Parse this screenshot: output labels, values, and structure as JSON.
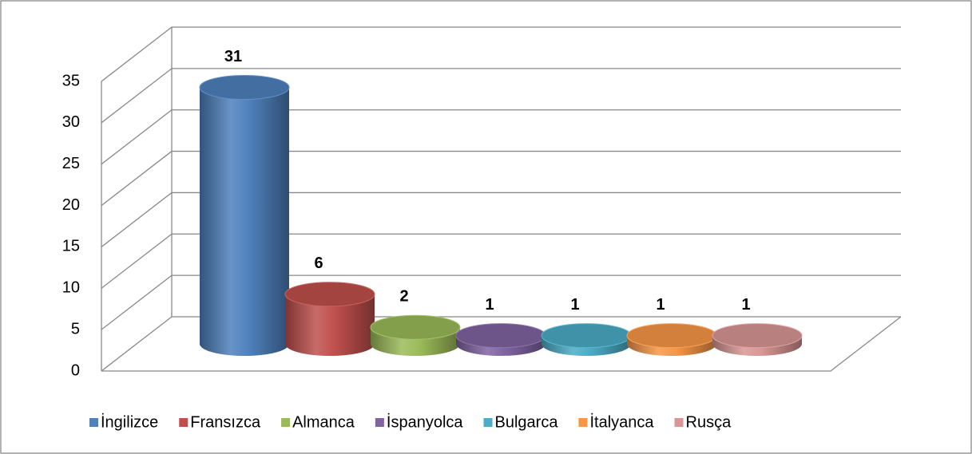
{
  "chart_data": {
    "type": "bar",
    "series": [
      {
        "name": "İngilizce",
        "color": "#4f81bd",
        "values": [
          31
        ]
      },
      {
        "name": "Fransızca",
        "color": "#c0504d",
        "values": [
          6
        ]
      },
      {
        "name": "Almanca",
        "color": "#9bbb59",
        "values": [
          2
        ]
      },
      {
        "name": "İspanyolca",
        "color": "#8064a2",
        "values": [
          1
        ]
      },
      {
        "name": "Bulgarca",
        "color": "#4bacc6",
        "values": [
          1
        ]
      },
      {
        "name": "İtalyanca",
        "color": "#f79646",
        "values": [
          1
        ]
      },
      {
        "name": "Rusça",
        "color": "#d99694",
        "values": [
          1
        ]
      }
    ],
    "ylim": [
      0,
      35
    ],
    "yticks": [
      0,
      5,
      10,
      15,
      20,
      25,
      30,
      35
    ],
    "grid": true,
    "legend": "bottom"
  }
}
